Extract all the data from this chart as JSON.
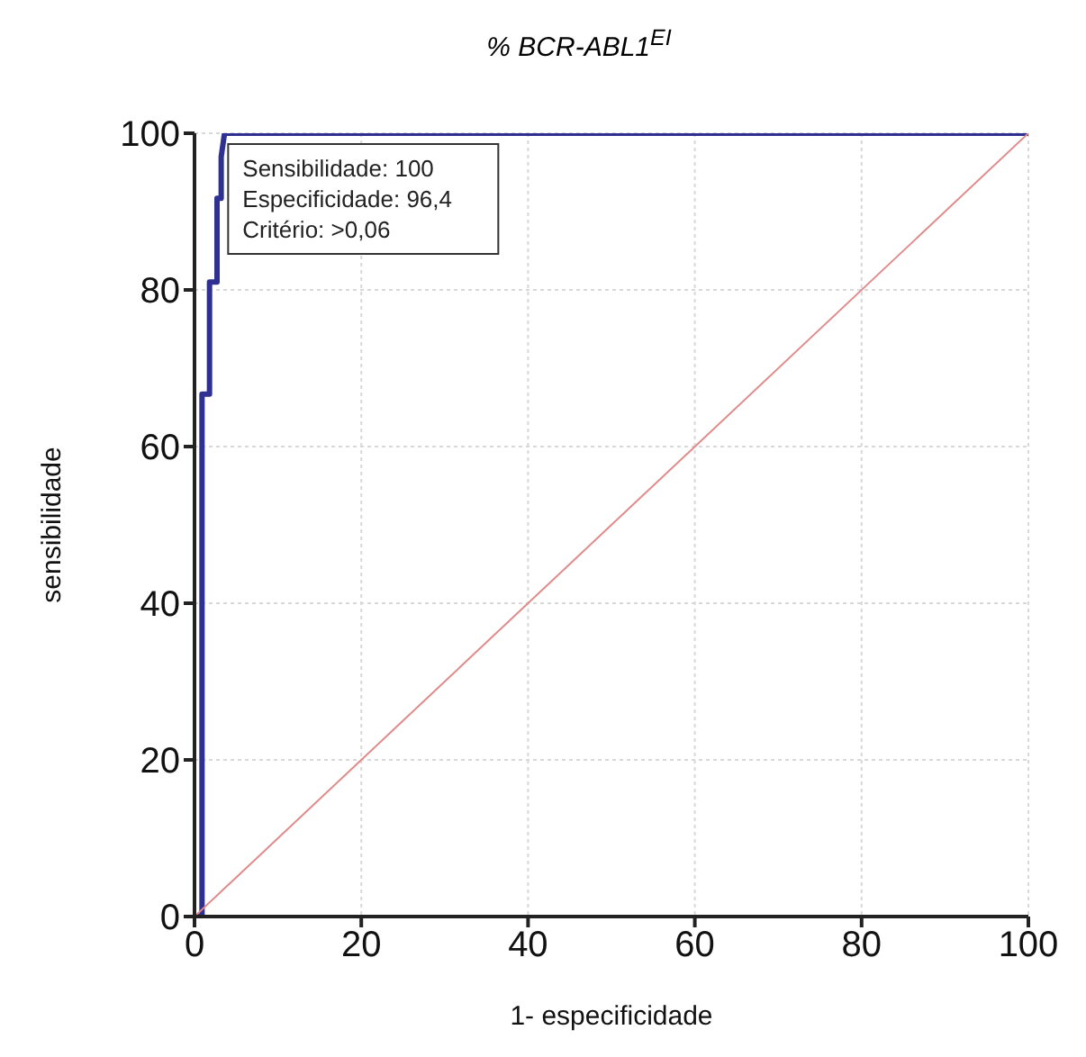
{
  "chart_data": {
    "type": "line",
    "title": "% BCR-ABL1$^{EI}$",
    "xlabel": "1- especificidade",
    "ylabel": "sensibilidade",
    "series": [
      {
        "color": "#2e3192",
        "x": [
          0,
          0.9,
          0.9,
          1.8,
          1.8,
          2.7,
          2.7,
          3.2,
          3.2,
          3.6,
          100
        ],
        "values": [
          0,
          0,
          66.7,
          66.7,
          81,
          81,
          91.7,
          91.7,
          97,
          100,
          100
        ]
      },
      {
        "color": "#e08a8a",
        "x": [
          0,
          100
        ],
        "values": [
          0,
          100
        ]
      }
    ],
    "xlim": [
      0,
      100
    ],
    "ylim": [
      0,
      100
    ],
    "xticks": [
      0,
      20,
      40,
      60,
      80,
      100
    ],
    "yticks": [
      0,
      20,
      40,
      60,
      80,
      100
    ],
    "grid": true,
    "marker": "none",
    "line_style": "solid",
    "annotations": [
      {
        "text": "Sensibilidade: 100\nEspecificidade: 96,4\nCritério: >0,06",
        "x": 3.6,
        "y": 100
      }
    ]
  }
}
